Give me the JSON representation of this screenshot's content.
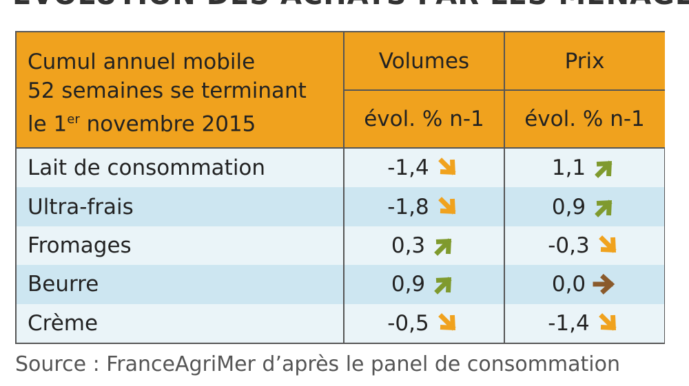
{
  "title": "ÉVOLUTION DES ACHATS PAR LES MÉNAGES",
  "table": {
    "header": {
      "label": [
        "Cumul annuel mobile",
        "52 semaines se terminant",
        "le 1",
        "er",
        " novembre 2015"
      ],
      "columns": [
        {
          "name": "Volumes",
          "unit": "évol. % n-1"
        },
        {
          "name": "Prix",
          "unit": "évol. % n-1"
        }
      ]
    },
    "rows": [
      [
        "Lait de consommation",
        "-1,4",
        "1,1"
      ],
      [
        "Ultra-frais",
        "-1,8",
        "0,9"
      ],
      [
        "Fromages",
        "0,3",
        "-0,3"
      ],
      [
        "Beurre",
        "0,9",
        "0,0"
      ],
      [
        "Crème",
        "-0,5",
        "-1,4"
      ]
    ]
  },
  "source": "Source : FranceAgriMer d’après le panel de consommation"
}
